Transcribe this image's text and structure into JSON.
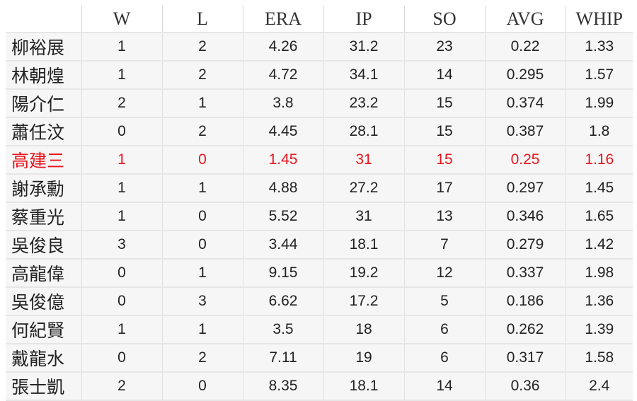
{
  "table": {
    "headers": [
      "W",
      "L",
      "ERA",
      "IP",
      "SO",
      "AVG",
      "WHIP"
    ],
    "highlight_color": "#e8141c",
    "rows": [
      {
        "name": "柳裕展",
        "W": "1",
        "L": "2",
        "ERA": "4.26",
        "IP": "31.2",
        "SO": "23",
        "AVG": "0.22",
        "WHIP": "1.33",
        "highlight": false
      },
      {
        "name": "林朝煌",
        "W": "1",
        "L": "2",
        "ERA": "4.72",
        "IP": "34.1",
        "SO": "14",
        "AVG": "0.295",
        "WHIP": "1.57",
        "highlight": false
      },
      {
        "name": "陽介仁",
        "W": "2",
        "L": "1",
        "ERA": "3.8",
        "IP": "23.2",
        "SO": "15",
        "AVG": "0.374",
        "WHIP": "1.99",
        "highlight": false
      },
      {
        "name": "蕭任汶",
        "W": "0",
        "L": "2",
        "ERA": "4.45",
        "IP": "28.1",
        "SO": "15",
        "AVG": "0.387",
        "WHIP": "1.8",
        "highlight": false
      },
      {
        "name": "高建三",
        "W": "1",
        "L": "0",
        "ERA": "1.45",
        "IP": "31",
        "SO": "15",
        "AVG": "0.25",
        "WHIP": "1.16",
        "highlight": true
      },
      {
        "name": "謝承勳",
        "W": "1",
        "L": "1",
        "ERA": "4.88",
        "IP": "27.2",
        "SO": "17",
        "AVG": "0.297",
        "WHIP": "1.45",
        "highlight": false
      },
      {
        "name": "蔡重光",
        "W": "1",
        "L": "0",
        "ERA": "5.52",
        "IP": "31",
        "SO": "13",
        "AVG": "0.346",
        "WHIP": "1.65",
        "highlight": false
      },
      {
        "name": "吳俊良",
        "W": "3",
        "L": "0",
        "ERA": "3.44",
        "IP": "18.1",
        "SO": "7",
        "AVG": "0.279",
        "WHIP": "1.42",
        "highlight": false
      },
      {
        "name": "高龍偉",
        "W": "0",
        "L": "1",
        "ERA": "9.15",
        "IP": "19.2",
        "SO": "12",
        "AVG": "0.337",
        "WHIP": "1.98",
        "highlight": false
      },
      {
        "name": "吳俊億",
        "W": "0",
        "L": "3",
        "ERA": "6.62",
        "IP": "17.2",
        "SO": "5",
        "AVG": "0.186",
        "WHIP": "1.36",
        "highlight": false
      },
      {
        "name": "何紀賢",
        "W": "1",
        "L": "1",
        "ERA": "3.5",
        "IP": "18",
        "SO": "6",
        "AVG": "0.262",
        "WHIP": "1.39",
        "highlight": false
      },
      {
        "name": "戴龍水",
        "W": "0",
        "L": "2",
        "ERA": "7.11",
        "IP": "19",
        "SO": "6",
        "AVG": "0.317",
        "WHIP": "1.58",
        "highlight": false
      },
      {
        "name": "張士凱",
        "W": "2",
        "L": "0",
        "ERA": "8.35",
        "IP": "18.1",
        "SO": "14",
        "AVG": "0.36",
        "WHIP": "2.4",
        "highlight": false
      }
    ]
  }
}
